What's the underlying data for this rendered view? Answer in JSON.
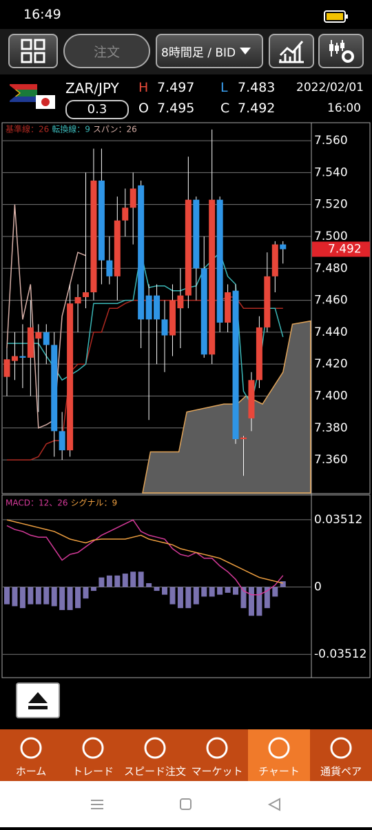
{
  "status_bar": {
    "time": "16:49"
  },
  "toolbar": {
    "order": "注文",
    "timeframe": "8時間足 / BID"
  },
  "quote": {
    "pair": "ZAR/JPY",
    "high_label": "H",
    "high": 7.497,
    "low_label": "L",
    "low": 7.483,
    "date": "2022/02/01",
    "spread": 0.3,
    "open_label": "O",
    "open": 7.495,
    "close_label": "C",
    "close": 7.492,
    "time": "16:00"
  },
  "chart_data": [
    {
      "type": "candlestick",
      "up_color": "#e8473a",
      "down_color": "#2f95e6",
      "open": [
        7.412,
        7.422,
        7.425,
        7.424,
        7.436,
        7.44,
        7.432,
        7.378,
        7.366,
        7.458,
        7.462,
        7.465,
        7.535,
        7.485,
        7.475,
        7.51,
        7.518,
        7.532,
        7.463,
        7.463,
        7.448,
        7.438,
        7.455,
        7.463,
        7.523,
        7.48,
        7.426,
        7.523,
        7.446,
        7.466,
        7.373,
        7.386,
        7.41,
        7.443,
        7.475,
        7.495
      ],
      "high": [
        7.43,
        7.44,
        7.445,
        7.46,
        7.445,
        7.445,
        7.44,
        7.39,
        7.47,
        7.47,
        7.54,
        7.555,
        7.555,
        7.5,
        7.525,
        7.53,
        7.54,
        7.535,
        7.47,
        7.47,
        7.46,
        7.47,
        7.48,
        7.55,
        7.525,
        7.5,
        7.567,
        7.525,
        7.47,
        7.47,
        7.375,
        7.415,
        7.45,
        7.49,
        7.497,
        7.497
      ],
      "low": [
        7.4,
        7.41,
        7.405,
        7.4,
        7.39,
        7.42,
        7.362,
        7.36,
        7.362,
        7.44,
        7.455,
        7.46,
        7.47,
        7.47,
        7.46,
        7.5,
        7.495,
        7.43,
        7.385,
        7.42,
        7.415,
        7.425,
        7.43,
        7.455,
        7.46,
        7.424,
        7.42,
        7.44,
        7.44,
        7.37,
        7.35,
        7.378,
        7.405,
        7.44,
        7.465,
        7.483
      ],
      "close": [
        7.423,
        7.425,
        7.424,
        7.443,
        7.44,
        7.432,
        7.378,
        7.366,
        7.458,
        7.462,
        7.465,
        7.535,
        7.485,
        7.475,
        7.51,
        7.518,
        7.53,
        7.448,
        7.448,
        7.448,
        7.438,
        7.46,
        7.463,
        7.523,
        7.48,
        7.426,
        7.523,
        7.446,
        7.465,
        7.373,
        7.374,
        7.41,
        7.443,
        7.475,
        7.495,
        7.492
      ],
      "series": [
        {
          "name": "基準線：26",
          "color": "#b02a22",
          "values": [
            7.36,
            7.36,
            7.36,
            7.36,
            7.362,
            7.37,
            7.372,
            7.372,
            7.415,
            7.42,
            7.42,
            7.44,
            7.44,
            7.455,
            7.455,
            7.458,
            7.46,
            7.46,
            7.46,
            7.46,
            7.46,
            7.46,
            7.46,
            7.46,
            7.46,
            7.46,
            7.46,
            7.46,
            7.462,
            7.462,
            7.455,
            7.455,
            7.455,
            7.455,
            7.455,
            7.455
          ]
        },
        {
          "name": "転換線：9",
          "color": "#3bb8b8",
          "values": [
            7.433,
            7.433,
            7.433,
            7.433,
            7.433,
            7.425,
            7.418,
            7.41,
            7.413,
            7.416,
            7.42,
            7.458,
            7.458,
            7.458,
            7.458,
            7.46,
            7.46,
            7.49,
            7.468,
            7.469,
            7.469,
            7.466,
            7.466,
            7.468,
            7.469,
            7.48,
            7.485,
            7.49,
            7.475,
            7.47,
            7.403,
            7.395,
            7.418,
            7.455,
            7.455,
            7.437
          ]
        },
        {
          "name": "スパン：26",
          "color": "#d8b0a8",
          "values": [
            7.43,
            7.52,
            7.448,
            7.47,
            7.38,
            7.382,
            7.385,
            7.45,
            7.47,
            7.49,
            7.488,
            null,
            null,
            null,
            null,
            null,
            null,
            null,
            null,
            null,
            null,
            null,
            null,
            null,
            null,
            null,
            null,
            null,
            null,
            null,
            null,
            null,
            null,
            null,
            null,
            null
          ]
        }
      ],
      "cloud": {
        "color": "#5c5c5c",
        "edge_color": "#e0a45a",
        "x": [
          17.2,
          18.2,
          21.8,
          22.8,
          27.5,
          29.2,
          30.3,
          32.4,
          35.0,
          36.2,
          38.5
        ],
        "values": [
          7.339,
          7.365,
          7.365,
          7.39,
          7.395,
          7.395,
          7.4,
          7.395,
          7.415,
          7.445,
          7.447
        ]
      },
      "last_price": 7.492,
      "last_price_color": "#e0242a",
      "ylim": [
        7.3393,
        7.5704
      ],
      "yticks": [
        {
          "value": 7.56,
          "label": "7.560"
        },
        {
          "value": 7.54,
          "label": "7.540"
        },
        {
          "value": 7.52,
          "label": "7.520"
        },
        {
          "value": 7.5,
          "label": "7.500"
        },
        {
          "value": 7.48,
          "label": "7.480"
        },
        {
          "value": 7.46,
          "label": "7.460"
        },
        {
          "value": 7.44,
          "label": "7.440"
        },
        {
          "value": 7.42,
          "label": "7.420"
        },
        {
          "value": 7.4,
          "label": "7.400"
        },
        {
          "value": 7.38,
          "label": "7.380"
        },
        {
          "value": 7.36,
          "label": "7.360"
        }
      ],
      "grid": true
    },
    {
      "type": "macd",
      "series": [
        {
          "name": "MACD：12、26",
          "color": "#d63a9a",
          "values": [
            0.032,
            0.03,
            0.029,
            0.027,
            0.026,
            0.026,
            0.02,
            0.014,
            0.017,
            0.018,
            0.021,
            0.024,
            0.027,
            0.029,
            0.031,
            0.033,
            0.035,
            0.029,
            0.027,
            0.026,
            0.025,
            0.02,
            0.017,
            0.016,
            0.018,
            0.015,
            0.015,
            0.011,
            0.008,
            0.004,
            -0.002,
            -0.004,
            -0.004,
            -0.002,
            0.001,
            0.006
          ]
        },
        {
          "name": "シグナル：9",
          "color": "#f0a040",
          "values": [
            0.035,
            0.034,
            0.033,
            0.032,
            0.031,
            0.03,
            0.029,
            0.027,
            0.025,
            0.024,
            0.023,
            0.0245,
            0.025,
            0.025,
            0.025,
            0.025,
            0.026,
            0.027,
            0.025,
            0.024,
            0.023,
            0.022,
            0.02,
            0.019,
            0.018,
            0.017,
            0.016,
            0.015,
            0.013,
            0.011,
            0.009,
            0.007,
            0.005,
            0.004,
            0.003,
            0.002
          ]
        }
      ],
      "histogram": {
        "color": "#7a72b0",
        "values": [
          -0.009,
          -0.01,
          -0.011,
          -0.009,
          -0.009,
          -0.009,
          -0.01,
          -0.012,
          -0.012,
          -0.011,
          -0.006,
          -0.002,
          0.005,
          0.006,
          0.006,
          0.007,
          0.008,
          0.008,
          0.002,
          -0.002,
          -0.004,
          -0.009,
          -0.011,
          -0.011,
          -0.009,
          -0.005,
          -0.005,
          -0.004,
          -0.003,
          -0.004,
          -0.011,
          -0.015,
          -0.015,
          -0.011,
          -0.005,
          0.003
        ]
      },
      "ylim": [
        -0.0469,
        0.048
      ],
      "yticks": [
        0.03512,
        0,
        -0.03512
      ],
      "grid": true
    }
  ],
  "nav": {
    "items": [
      "ホーム",
      "トレード",
      "スピード注文",
      "マーケット",
      "チャート",
      "通貨ペア"
    ],
    "active": 4
  }
}
